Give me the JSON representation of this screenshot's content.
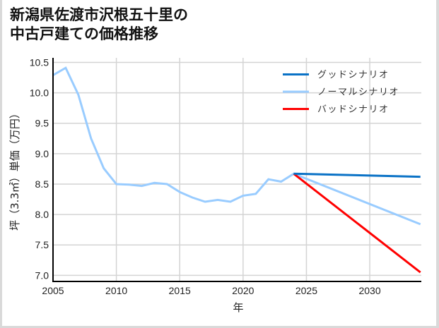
{
  "chart_data": {
    "type": "line",
    "title": "新潟県佐渡市沢根五十里の\n中古戸建ての価格推移",
    "xlabel": "年",
    "ylabel": "坪（3.3㎡）単価（万円）",
    "xlim": [
      2005,
      2034.07
    ],
    "ylim": [
      6.9,
      10.575
    ],
    "grid": true,
    "legend_position": "upper right",
    "x_ticks": [
      2005,
      2010,
      2015,
      2020,
      2025,
      2030
    ],
    "y_ticks": [
      7.0,
      7.5,
      8.0,
      8.5,
      9.0,
      9.5,
      10.0,
      10.5
    ],
    "x_tick_labels": [
      "2005",
      "2010",
      "2015",
      "2020",
      "2025",
      "2030"
    ],
    "y_tick_labels": [
      "7.0",
      "7.5",
      "8.0",
      "8.5",
      "9.0",
      "9.5",
      "10.0",
      "10.5"
    ],
    "series": [
      {
        "name": "グッドシナリオ",
        "color": "#0a72c6",
        "x": [
          2024,
          2034
        ],
        "values": [
          8.67,
          8.62
        ]
      },
      {
        "name": "ノーマルシナリオ",
        "color": "#99ccff",
        "x": [
          2005,
          2006,
          2007,
          2008,
          2009,
          2010,
          2011,
          2012,
          2013,
          2014,
          2015,
          2016,
          2017,
          2018,
          2019,
          2020,
          2021,
          2022,
          2023,
          2024,
          2034
        ],
        "values": [
          10.29,
          10.41,
          9.97,
          9.25,
          8.76,
          8.5,
          8.49,
          8.47,
          8.52,
          8.5,
          8.37,
          8.28,
          8.21,
          8.24,
          8.21,
          8.31,
          8.34,
          8.58,
          8.54,
          8.67,
          7.84
        ]
      },
      {
        "name": "バッドシナリオ",
        "color": "#ff0000",
        "x": [
          2024,
          2034
        ],
        "values": [
          8.67,
          7.05
        ]
      }
    ]
  },
  "header": {
    "title": "新潟県佐渡市沢根五十里の\n中古戸建ての価格推移"
  },
  "axes": {
    "x_label": "年",
    "y_label": "坪（3.3㎡）単価（万円）"
  },
  "legend": [
    {
      "label": "グッドシナリオ",
      "color": "#0a72c6"
    },
    {
      "label": "ノーマルシナリオ",
      "color": "#99ccff"
    },
    {
      "label": "バッドシナリオ",
      "color": "#ff0000"
    }
  ]
}
